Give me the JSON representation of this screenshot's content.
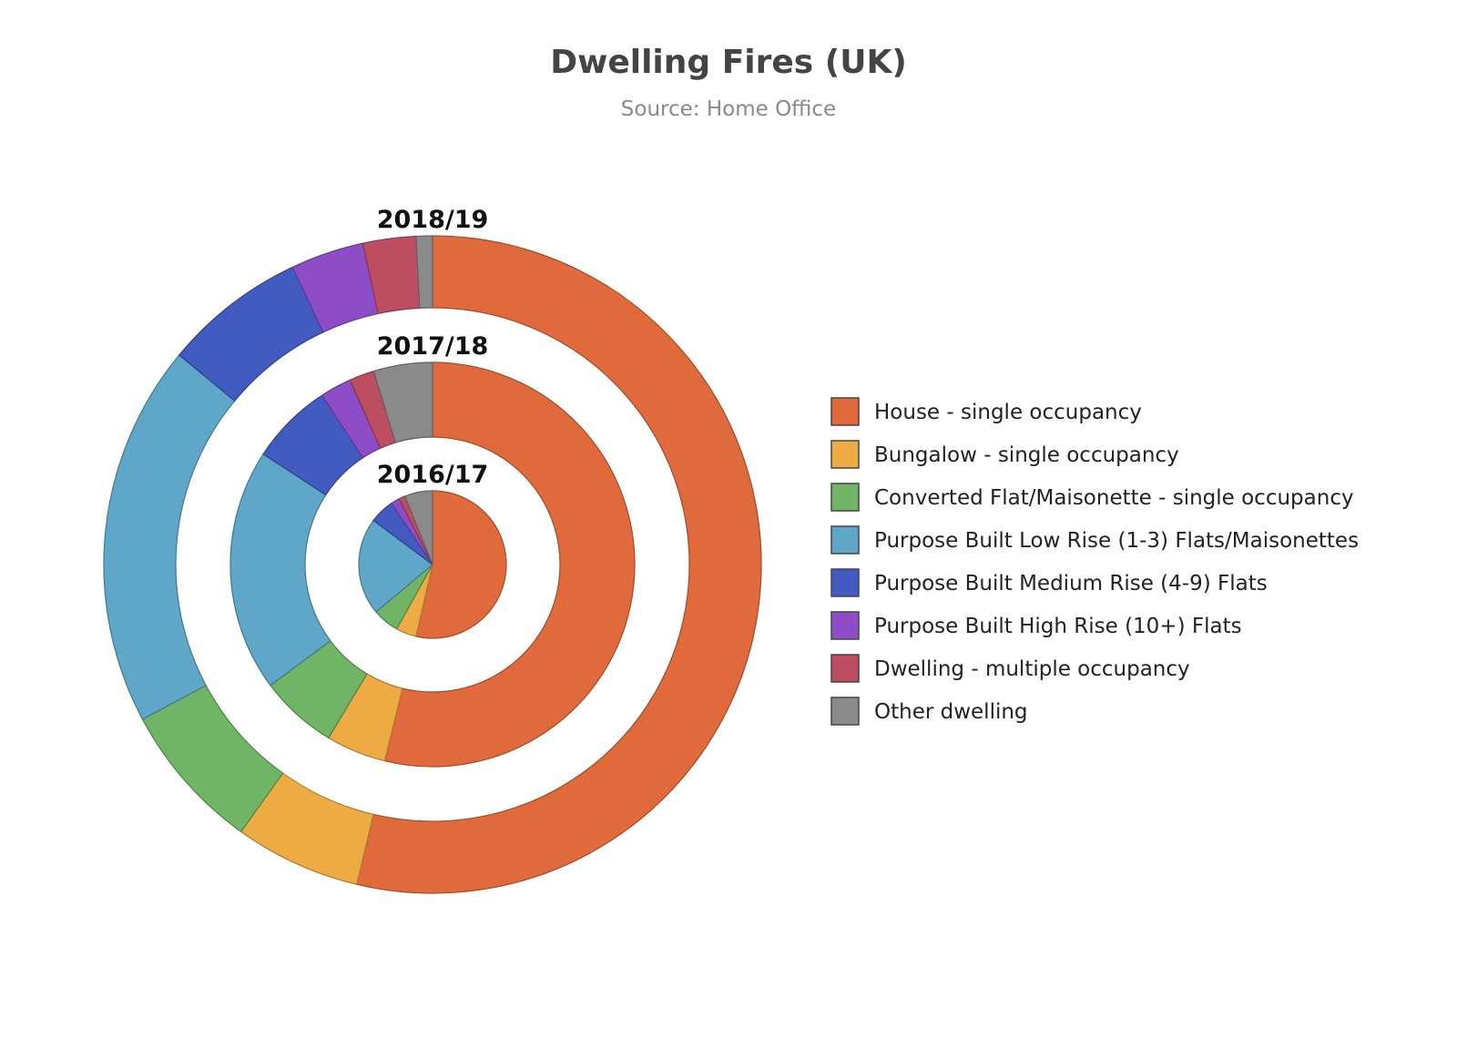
{
  "chart_data": {
    "type": "pie",
    "title": "Dwelling Fires (UK)",
    "subtitle": "Source: Home Office",
    "value_unit": "percent of ring",
    "categories": [
      "House - single occupancy",
      "Bungalow - single occupancy",
      "Converted Flat/Maisonette - single occupancy",
      "Purpose Built Low Rise (1-3) Flats/Maisonettes",
      "Purpose Built Medium Rise (4-9) Flats",
      "Purpose Built High Rise (10+) Flats",
      "Dwelling - multiple occupancy",
      "Other dwelling"
    ],
    "colors": [
      "#e06a3c",
      "#efab43",
      "#6fb565",
      "#5fa7c8",
      "#425bc0",
      "#8d4dc6",
      "#bd4e62",
      "#8a8a8a"
    ],
    "series": [
      {
        "name": "2016/17",
        "values": [
          53.6,
          4.5,
          5.8,
          21.3,
          5.4,
          1.9,
          1.4,
          6.1
        ]
      },
      {
        "name": "2017/18",
        "values": [
          53.8,
          4.8,
          6.2,
          19.4,
          6.6,
          2.5,
          2.0,
          4.7
        ]
      },
      {
        "name": "2018/19",
        "values": [
          53.7,
          6.2,
          7.3,
          18.8,
          7.0,
          3.6,
          2.6,
          0.8
        ]
      }
    ],
    "ring_order": "inner to outer",
    "legend_position": "right"
  }
}
